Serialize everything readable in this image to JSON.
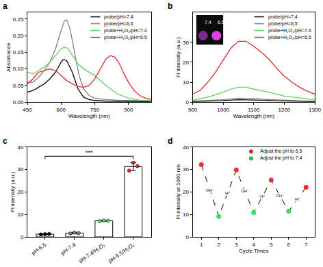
{
  "chart_data": [
    {
      "panel": "a",
      "type": "line",
      "x_label": "Wavelength (nm)",
      "y_label": "Absorbance",
      "xlim": [
        450,
        1000
      ],
      "xticks": [
        450,
        600,
        750,
        900
      ],
      "ylim": [
        0,
        0.27
      ],
      "yticks": [
        {
          "value": 0,
          "label": "0.00"
        },
        0.05,
        {
          "value": 0.1,
          "label": "0.10"
        },
        0.15,
        {
          "value": 0.2,
          "label": "0.20"
        },
        0.25
      ],
      "grid": false,
      "legend": "upper right",
      "series": [
        {
          "name": "probe/pH=7.4",
          "color": "#000000",
          "x": [
            450,
            475,
            500,
            525,
            550,
            575,
            600,
            610,
            625,
            650,
            675,
            700,
            725,
            750,
            800,
            850,
            900,
            950,
            1000
          ],
          "values": [
            0.03,
            0.035,
            0.045,
            0.055,
            0.07,
            0.09,
            0.12,
            0.128,
            0.125,
            0.09,
            0.04,
            0.015,
            0.008,
            0.005,
            0.003,
            0.003,
            0.002,
            0.002,
            0.002
          ]
        },
        {
          "name": "probe/pH=6.6",
          "color": "#808080",
          "x": [
            450,
            475,
            500,
            525,
            550,
            575,
            600,
            615,
            625,
            640,
            660,
            680,
            700,
            725,
            750,
            800,
            850,
            900,
            950,
            1000
          ],
          "values": [
            0.06,
            0.06,
            0.075,
            0.095,
            0.12,
            0.16,
            0.215,
            0.245,
            0.247,
            0.22,
            0.15,
            0.08,
            0.04,
            0.02,
            0.012,
            0.008,
            0.006,
            0.005,
            0.004,
            0.004
          ]
        },
        {
          "name": "probe+H₂O₂/pH=7.4",
          "color": "#5fd35f",
          "x": [
            450,
            475,
            500,
            525,
            550,
            575,
            600,
            615,
            630,
            650,
            675,
            700,
            725,
            750,
            775,
            800,
            850,
            900,
            950,
            1000
          ],
          "values": [
            0.09,
            0.085,
            0.095,
            0.105,
            0.12,
            0.14,
            0.16,
            0.165,
            0.162,
            0.14,
            0.115,
            0.1,
            0.09,
            0.08,
            0.065,
            0.05,
            0.025,
            0.012,
            0.006,
            0.004
          ]
        },
        {
          "name": "probe+H₂O₂/pH=6.5",
          "color": "#e8282d",
          "x": [
            450,
            475,
            500,
            525,
            550,
            575,
            600,
            625,
            650,
            675,
            700,
            725,
            750,
            775,
            800,
            820,
            840,
            860,
            880,
            900,
            925,
            950,
            975,
            1000
          ],
          "values": [
            0.055,
            0.07,
            0.09,
            0.095,
            0.1,
            0.095,
            0.08,
            0.065,
            0.055,
            0.047,
            0.045,
            0.05,
            0.07,
            0.1,
            0.13,
            0.14,
            0.135,
            0.115,
            0.085,
            0.06,
            0.035,
            0.02,
            0.012,
            0.008
          ]
        }
      ]
    },
    {
      "panel": "b",
      "type": "line",
      "x_label": "Wavelength (nm)",
      "y_label": "Fl intensity (a.u.)",
      "xlim": [
        900,
        1300
      ],
      "xticks": [
        900,
        1000,
        1100,
        1200,
        1300
      ],
      "ylim": [
        0,
        45
      ],
      "yticks": [
        0,
        10,
        20,
        30
      ],
      "grid": false,
      "legend": "upper right",
      "inset": {
        "labels": [
          "7.4",
          "6.5"
        ]
      },
      "series": [
        {
          "name": "probe/pH=7.4",
          "color": "#000000",
          "x": [
            900,
            950,
            1000,
            1050,
            1100,
            1150,
            1200,
            1250,
            1300
          ],
          "values": [
            0.3,
            0.5,
            0.8,
            1.2,
            1.1,
            0.9,
            0.6,
            0.4,
            0.3
          ]
        },
        {
          "name": "probe/pH=6.5",
          "color": "#808080",
          "x": [
            900,
            950,
            1000,
            1050,
            1100,
            1150,
            1200,
            1250,
            1300
          ],
          "values": [
            0.5,
            0.8,
            1.2,
            2.0,
            1.8,
            1.3,
            0.9,
            0.7,
            0.5
          ]
        },
        {
          "name": "probe+H₂O₂/pH=7.4",
          "color": "#5fd35f",
          "x": [
            900,
            950,
            1000,
            1025,
            1050,
            1075,
            1100,
            1150,
            1200,
            1250,
            1300
          ],
          "values": [
            1,
            2.5,
            5,
            6.5,
            7.5,
            7.5,
            6.5,
            5,
            3,
            2,
            1.2
          ]
        },
        {
          "name": "probe+H₂O₂/pH=6.5",
          "color": "#e8282d",
          "x": [
            900,
            925,
            950,
            975,
            1000,
            1025,
            1050,
            1075,
            1100,
            1125,
            1150,
            1175,
            1200,
            1225,
            1250,
            1275,
            1300
          ],
          "values": [
            4,
            6,
            10,
            15,
            21,
            27,
            30.5,
            30.5,
            28,
            25,
            21.5,
            17,
            13,
            10,
            7.5,
            5.5,
            4
          ]
        }
      ]
    },
    {
      "panel": "c",
      "type": "bar",
      "y_label": "Fl intensity (a.u.)",
      "categories": [
        "pH-6.5",
        "pH-7.4",
        "pH-7.4/H₂O₂",
        "pH-6.5/H₂O₂"
      ],
      "values": [
        1.2,
        1.7,
        7.2,
        31.3
      ],
      "errors": [
        0.1,
        0.3,
        0.2,
        1.8
      ],
      "points": [
        [
          1.1,
          1.2,
          1.3
        ],
        [
          1.5,
          1.9,
          1.7
        ],
        [
          7.0,
          7.3,
          7.2
        ],
        [
          29.5,
          33.0,
          31.5
        ]
      ],
      "color": "#ffffff",
      "colors": [
        "#000000",
        "#808080",
        "#5fd35f",
        "#e8282d"
      ],
      "ylim": [
        0,
        40
      ],
      "yticks": [
        0,
        10,
        20,
        30,
        40
      ],
      "grid": false,
      "significance": {
        "text": "***",
        "between": [
          "pH-6.5",
          "pH-6.5/H₂O₂"
        ]
      }
    },
    {
      "panel": "d",
      "type": "scatter",
      "x_label": "Cycle Times",
      "y_label": "Fl intensity at 1060 nm",
      "xlim": [
        0.5,
        7.5
      ],
      "xticks": [
        1,
        2,
        3,
        4,
        5,
        6,
        7
      ],
      "ylim": [
        0,
        40
      ],
      "yticks": [
        0,
        10,
        20,
        30,
        40
      ],
      "grid": false,
      "legend": "upper right",
      "marker": "circle",
      "line_style": "dashed",
      "cycle_labels": [
        "OH⁻",
        "H⁺",
        "OH⁻",
        "H⁺",
        "OH⁻",
        "H⁺"
      ],
      "series": [
        {
          "name": "Adjust the pH to 6.5",
          "color": "#ff2a2a",
          "x": [
            1,
            3,
            5,
            7
          ],
          "values": [
            32.2,
            29.8,
            25.3,
            22.1
          ]
        },
        {
          "name": "Adjust the pH to 7.4",
          "color": "#33e05a",
          "x": [
            2,
            4,
            6
          ],
          "values": [
            9.1,
            10.8,
            11.4
          ]
        }
      ]
    }
  ]
}
